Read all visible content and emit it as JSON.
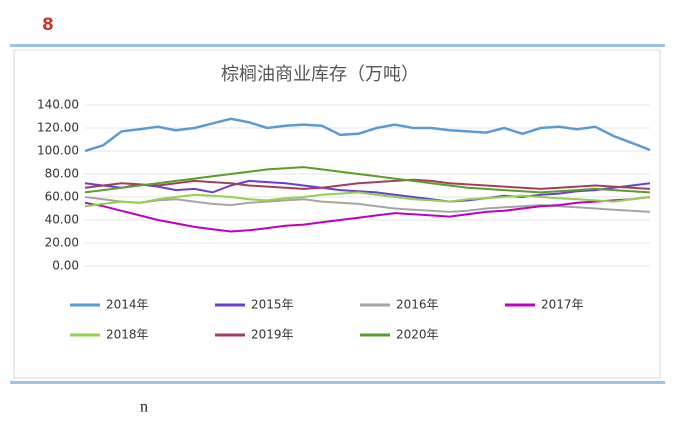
{
  "page_number": "8",
  "footer_text": "n",
  "chart_data": {
    "type": "line",
    "title": "棕榈油商业库存（万吨）",
    "ylim": [
      0,
      140
    ],
    "yticks": [
      {
        "value": 0,
        "label": "0.00"
      },
      {
        "value": 20,
        "label": "20.00"
      },
      {
        "value": 40,
        "label": "40.00"
      },
      {
        "value": 60,
        "label": "60.00"
      },
      {
        "value": 80,
        "label": "80.00"
      },
      {
        "value": 100,
        "label": "100.00"
      },
      {
        "value": 120,
        "label": "120.00"
      },
      {
        "value": 140,
        "label": "140.00"
      }
    ],
    "grid": true,
    "legend": "bottom",
    "series": [
      {
        "name": "2014年",
        "color": "#5b9bd5",
        "values": [
          100,
          105,
          117,
          119,
          121,
          118,
          120,
          124,
          128,
          125,
          120,
          122,
          123,
          122,
          114,
          115,
          120,
          123,
          120,
          120,
          118,
          117,
          116,
          120,
          115,
          120,
          121,
          119,
          121,
          113,
          107,
          101
        ]
      },
      {
        "name": "2015年",
        "color": "#6a3fd0",
        "values": [
          72,
          70,
          68,
          71,
          69,
          66,
          67,
          64,
          70,
          74,
          73,
          72,
          70,
          68,
          66,
          65,
          64,
          62,
          60,
          58,
          56,
          57,
          59,
          61,
          60,
          62,
          63,
          65,
          66,
          68,
          70,
          72
        ]
      },
      {
        "name": "2016年",
        "color": "#a5a5a5",
        "values": [
          60,
          58,
          56,
          55,
          57,
          58,
          56,
          54,
          53,
          55,
          56,
          57,
          58,
          56,
          55,
          54,
          52,
          50,
          49,
          48,
          47,
          48,
          50,
          51,
          52,
          53,
          52,
          51,
          50,
          49,
          48,
          47
        ]
      },
      {
        "name": "2017年",
        "color": "#c000c0",
        "values": [
          55,
          52,
          48,
          44,
          40,
          37,
          34,
          32,
          30,
          31,
          33,
          35,
          36,
          38,
          40,
          42,
          44,
          46,
          45,
          44,
          43,
          45,
          47,
          48,
          50,
          52,
          53,
          55,
          56,
          57,
          58,
          60
        ]
      },
      {
        "name": "2018年",
        "color": "#92d050",
        "values": [
          52,
          54,
          56,
          55,
          58,
          60,
          62,
          61,
          60,
          58,
          57,
          59,
          60,
          62,
          63,
          64,
          62,
          60,
          58,
          57,
          56,
          58,
          59,
          60,
          61,
          60,
          59,
          58,
          57,
          56,
          58,
          60
        ]
      },
      {
        "name": "2019年",
        "color": "#a0405a",
        "values": [
          68,
          70,
          72,
          71,
          70,
          72,
          74,
          73,
          72,
          70,
          69,
          68,
          67,
          68,
          70,
          72,
          73,
          74,
          75,
          74,
          72,
          71,
          70,
          69,
          68,
          67,
          68,
          69,
          70,
          69,
          68,
          67
        ]
      },
      {
        "name": "2020年",
        "color": "#5a9e2a",
        "values": [
          64,
          66,
          68,
          70,
          72,
          74,
          76,
          78,
          80,
          82,
          84,
          85,
          86,
          84,
          82,
          80,
          78,
          76,
          74,
          72,
          70,
          68,
          67,
          66,
          65,
          64,
          65,
          66,
          67,
          66,
          65,
          64
        ]
      }
    ]
  }
}
